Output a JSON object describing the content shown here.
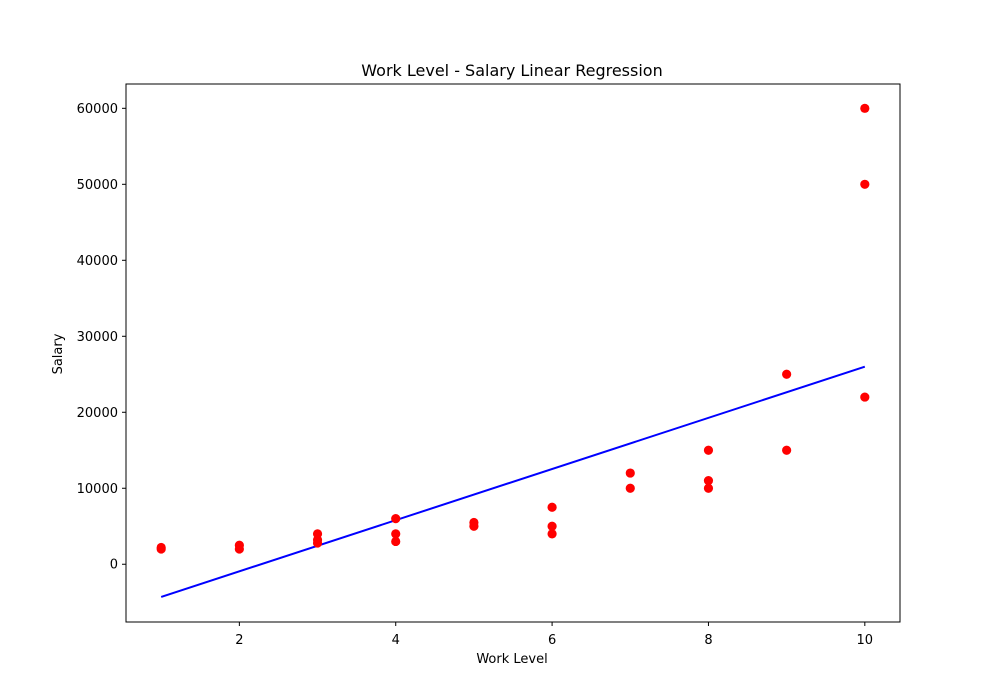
{
  "chart_data": {
    "type": "scatter",
    "title": "Work Level - Salary Linear Regression",
    "xlabel": "Work Level",
    "ylabel": "Salary",
    "xlim": [
      0.55,
      10.45
    ],
    "ylim": [
      -7600,
      63200
    ],
    "xticks": [
      2,
      4,
      6,
      8,
      10
    ],
    "yticks": [
      0,
      10000,
      20000,
      30000,
      40000,
      50000,
      60000
    ],
    "grid": false,
    "colors": {
      "points": "#ff0000",
      "line": "#0000ff",
      "axes": "#000000",
      "background": "#ffffff"
    },
    "series": [
      {
        "type": "scatter",
        "x": [
          1,
          1,
          2,
          2,
          3,
          3,
          3,
          4,
          4,
          4,
          5,
          5,
          6,
          6,
          6,
          7,
          7,
          8,
          8,
          8,
          9,
          9,
          10,
          10,
          10
        ],
        "y": [
          2000,
          2200,
          2000,
          2500,
          2800,
          3200,
          4000,
          3000,
          4000,
          6000,
          5000,
          5500,
          4000,
          5000,
          7500,
          10000,
          12000,
          10000,
          11000,
          15000,
          15000,
          25000,
          22000,
          50000,
          60000
        ]
      },
      {
        "type": "line",
        "x": [
          1,
          10
        ],
        "y": [
          -4300,
          26000
        ]
      }
    ]
  }
}
